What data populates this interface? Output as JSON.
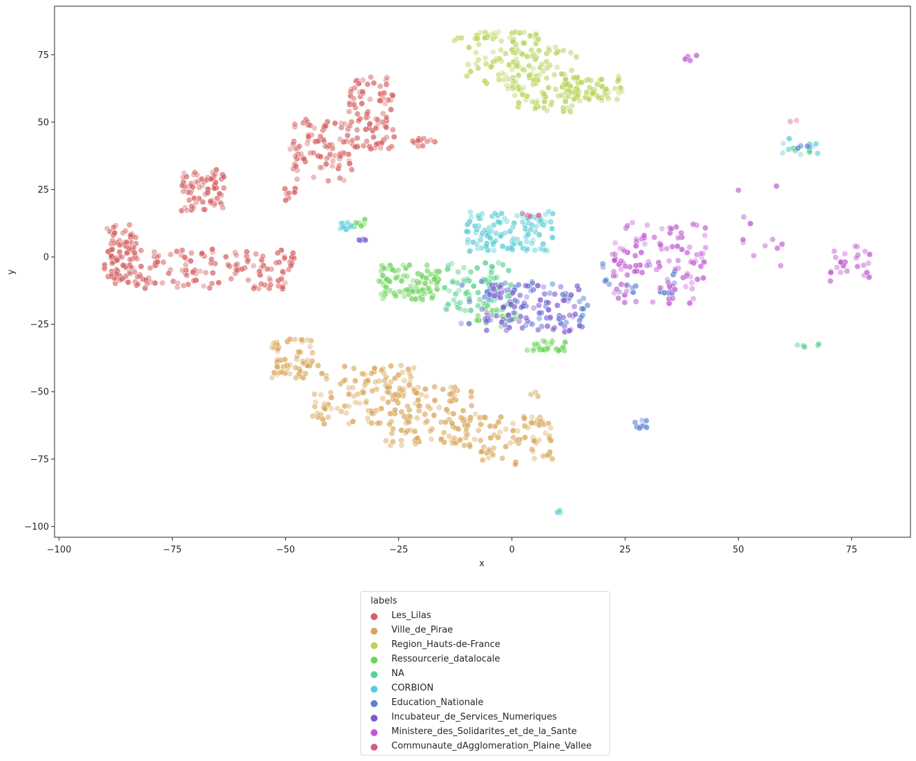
{
  "chart_data": {
    "type": "scatter",
    "title": "",
    "xlabel": "x",
    "ylabel": "y",
    "xlim": [
      -101,
      88
    ],
    "ylim": [
      -104,
      93
    ],
    "xticks": [
      -100,
      -75,
      -50,
      -25,
      0,
      25,
      50,
      75
    ],
    "xtick_labels": [
      "−100",
      "−75",
      "−50",
      "−25",
      "0",
      "25",
      "50",
      "75"
    ],
    "yticks": [
      -100,
      -75,
      -50,
      -25,
      0,
      25,
      50,
      75
    ],
    "ytick_labels": [
      "−100",
      "−75",
      "−50",
      "−25",
      "0",
      "25",
      "50",
      "75"
    ],
    "grid": false,
    "legend": {
      "title": "labels",
      "placement": "below"
    },
    "series": [
      {
        "name": "Les_Lilas",
        "color": "#d65f5f",
        "clusters": [
          {
            "x": [
              -90,
              -83
            ],
            "y": [
              -10,
              12
            ],
            "n": 90
          },
          {
            "x": [
              -83,
              -48
            ],
            "y": [
              -12,
              3
            ],
            "n": 130
          },
          {
            "x": [
              -73,
              -63
            ],
            "y": [
              17,
              33
            ],
            "n": 70
          },
          {
            "x": [
              -49,
              -35
            ],
            "y": [
              28,
              51
            ],
            "n": 90
          },
          {
            "x": [
              -36,
              -26
            ],
            "y": [
              40,
              67
            ],
            "n": 90
          },
          {
            "x": [
              -22,
              -17
            ],
            "y": [
              41,
              44
            ],
            "n": 12
          },
          {
            "x": [
              -52,
              -47
            ],
            "y": [
              19,
              26
            ],
            "n": 8
          }
        ]
      },
      {
        "name": "Ville_de_Pirae",
        "color": "#d8a657",
        "clusters": [
          {
            "x": [
              -53,
              -44
            ],
            "y": [
              -45,
              -30
            ],
            "n": 60
          },
          {
            "x": [
              -44,
              -20
            ],
            "y": [
              -62,
              -40
            ],
            "n": 120
          },
          {
            "x": [
              -28,
              -8
            ],
            "y": [
              -70,
              -48
            ],
            "n": 100
          },
          {
            "x": [
              -12,
              9
            ],
            "y": [
              -77,
              -59
            ],
            "n": 90
          },
          {
            "x": [
              4,
              6
            ],
            "y": [
              -52,
              -50
            ],
            "n": 3
          }
        ]
      },
      {
        "name": "Region_Hauts-de-France",
        "color": "#b8d35a",
        "clusters": [
          {
            "x": [
              -10,
              6
            ],
            "y": [
              62,
              84
            ],
            "n": 90
          },
          {
            "x": [
              0,
              15
            ],
            "y": [
              53,
              78
            ],
            "n": 90
          },
          {
            "x": [
              12,
              25
            ],
            "y": [
              58,
              67
            ],
            "n": 60
          },
          {
            "x": [
              -13,
              -11
            ],
            "y": [
              80,
              82
            ],
            "n": 3
          }
        ]
      },
      {
        "name": "Ressourcerie_datalocale",
        "color": "#6cd45a",
        "clusters": [
          {
            "x": [
              -30,
              -16
            ],
            "y": [
              -16,
              -3
            ],
            "n": 90
          },
          {
            "x": [
              -8,
              2
            ],
            "y": [
              -26,
              -18
            ],
            "n": 20
          },
          {
            "x": [
              3,
              12
            ],
            "y": [
              -35,
              -31
            ],
            "n": 25
          },
          {
            "x": [
              -35,
              -32
            ],
            "y": [
              11,
              14
            ],
            "n": 6
          }
        ]
      },
      {
        "name": "NA",
        "color": "#57d391",
        "clusters": [
          {
            "x": [
              -15,
              0
            ],
            "y": [
              -20,
              -2
            ],
            "n": 80
          },
          {
            "x": [
              63,
              69
            ],
            "y": [
              -34,
              -32
            ],
            "n": 5
          },
          {
            "x": [
              60,
              66
            ],
            "y": [
              36,
              42
            ],
            "n": 5
          }
        ]
      },
      {
        "name": "CORBION",
        "color": "#59cdd6",
        "clusters": [
          {
            "x": [
              -10,
              9
            ],
            "y": [
              2,
              17
            ],
            "n": 120
          },
          {
            "x": [
              -38,
              -35
            ],
            "y": [
              10,
              13
            ],
            "n": 15
          },
          {
            "x": [
              59,
              68
            ],
            "y": [
              36,
              44
            ],
            "n": 8
          },
          {
            "x": [
              10,
              12
            ],
            "y": [
              -95,
              -94
            ],
            "n": 3
          }
        ]
      },
      {
        "name": "Education_Nationale",
        "color": "#5a7fd3",
        "clusters": [
          {
            "x": [
              -12,
              17
            ],
            "y": [
              -26,
              -8
            ],
            "n": 60
          },
          {
            "x": [
              20,
              37
            ],
            "y": [
              -14,
              -2
            ],
            "n": 20
          },
          {
            "x": [
              27,
              31
            ],
            "y": [
              -68,
              -60
            ],
            "n": 8
          },
          {
            "x": [
              63,
              69
            ],
            "y": [
              39,
              42
            ],
            "n": 4
          }
        ]
      },
      {
        "name": "Incubateur_de_Services_Numeriques",
        "color": "#7c59d3",
        "clusters": [
          {
            "x": [
              -6,
              15
            ],
            "y": [
              -28,
              -10
            ],
            "n": 80
          },
          {
            "x": [
              -34,
              -32
            ],
            "y": [
              6,
              7
            ],
            "n": 4
          }
        ]
      },
      {
        "name": "Ministere_des_Solidarites_et_de_la_Sante",
        "color": "#c059d3",
        "clusters": [
          {
            "x": [
              22,
              43
            ],
            "y": [
              -18,
              14
            ],
            "n": 110
          },
          {
            "x": [
              70,
              79
            ],
            "y": [
              -9,
              4
            ],
            "n": 25
          },
          {
            "x": [
              50,
              60
            ],
            "y": [
              -5,
              27
            ],
            "n": 12
          },
          {
            "x": [
              38,
              42
            ],
            "y": [
              72,
              75
            ],
            "n": 4
          }
        ]
      },
      {
        "name": "Communaute_dAgglomeration_Plaine_Vallee",
        "color": "#d6598c",
        "clusters": [
          {
            "x": [
              2,
              6
            ],
            "y": [
              14,
              17
            ],
            "n": 4
          },
          {
            "x": [
              61,
              63
            ],
            "y": [
              49,
              51
            ],
            "n": 2
          }
        ]
      }
    ]
  }
}
